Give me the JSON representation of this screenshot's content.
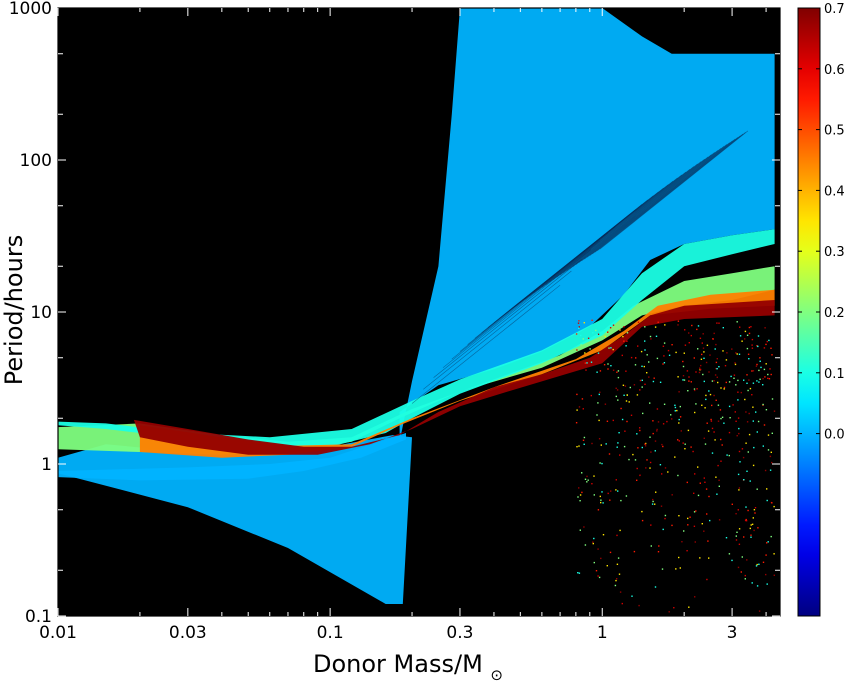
{
  "chart_data": {
    "type": "scatter",
    "title": "",
    "xlabel": "Donor Mass/M",
    "xlabel_symbol": "⊙",
    "ylabel": "Period/hours",
    "xscale": "log",
    "yscale": "log",
    "xlim": [
      0.01,
      4.5
    ],
    "ylim": [
      0.1,
      1000
    ],
    "x_ticks": [
      {
        "value": 0.01,
        "label": "0.01"
      },
      {
        "value": 0.03,
        "label": "0.03"
      },
      {
        "value": 0.1,
        "label": "0.1"
      },
      {
        "value": 0.3,
        "label": "0.3"
      },
      {
        "value": 1,
        "label": "1"
      },
      {
        "value": 3,
        "label": "3"
      }
    ],
    "y_ticks": [
      {
        "value": 0.1,
        "label": "0.1"
      },
      {
        "value": 1,
        "label": "1"
      },
      {
        "value": 10,
        "label": "10"
      },
      {
        "value": 100,
        "label": "100"
      },
      {
        "value": 1000,
        "label": "1000"
      }
    ],
    "background": "#000000",
    "grid": false,
    "colorbar": {
      "min": -0.3,
      "max": 0.7,
      "ticks": [
        {
          "value": 0.7,
          "label": "0.7"
        },
        {
          "value": 0.6,
          "label": "0.6"
        },
        {
          "value": 0.5,
          "label": "0.5"
        },
        {
          "value": 0.4,
          "label": "0.4"
        },
        {
          "value": 0.3,
          "label": "0.3"
        },
        {
          "value": 0.2,
          "label": "0.2"
        },
        {
          "value": 0.1,
          "label": "0.1"
        },
        {
          "value": 0.0,
          "label": "0.0"
        }
      ],
      "colormap": "jet"
    },
    "regions": [
      {
        "name": "blue-fan-upper",
        "color_value": 0.0,
        "polygon": [
          [
            0.18,
            1.4
          ],
          [
            0.2,
            3.5
          ],
          [
            0.25,
            20
          ],
          [
            0.28,
            200
          ],
          [
            0.3,
            1000
          ],
          [
            1.0,
            1000
          ],
          [
            1.4,
            650
          ],
          [
            1.8,
            500
          ],
          [
            4.3,
            500
          ],
          [
            4.3,
            35
          ],
          [
            3.0,
            32
          ],
          [
            2.0,
            28
          ],
          [
            1.5,
            22
          ],
          [
            1.2,
            13
          ],
          [
            0.9,
            8
          ],
          [
            0.6,
            5.5
          ],
          [
            0.4,
            4.2
          ],
          [
            0.25,
            3.3
          ],
          [
            0.18,
            2.2
          ]
        ]
      },
      {
        "name": "blue-lower-wedge",
        "color_value": 0.0,
        "polygon": [
          [
            0.01,
            1.1
          ],
          [
            0.01,
            0.87
          ],
          [
            0.03,
            0.52
          ],
          [
            0.07,
            0.28
          ],
          [
            0.16,
            0.12
          ],
          [
            0.185,
            0.12
          ],
          [
            0.2,
            1.5
          ],
          [
            0.17,
            1.55
          ],
          [
            0.1,
            1.3
          ],
          [
            0.06,
            1.15
          ],
          [
            0.03,
            1.2
          ],
          [
            0.015,
            1.35
          ]
        ]
      },
      {
        "name": "blue-left-track",
        "color_value": 0.0,
        "polygon": [
          [
            0.01,
            0.9
          ],
          [
            0.03,
            0.95
          ],
          [
            0.06,
            1.0
          ],
          [
            0.1,
            1.1
          ],
          [
            0.16,
            1.45
          ],
          [
            0.19,
            1.6
          ],
          [
            0.19,
            1.45
          ],
          [
            0.13,
            1.1
          ],
          [
            0.08,
            0.9
          ],
          [
            0.05,
            0.8
          ],
          [
            0.02,
            0.78
          ],
          [
            0.01,
            0.82
          ]
        ]
      },
      {
        "name": "green-band",
        "color_value": 0.2,
        "polygon": [
          [
            0.01,
            1.75
          ],
          [
            0.02,
            1.85
          ],
          [
            0.04,
            1.55
          ],
          [
            0.07,
            1.4
          ],
          [
            0.12,
            1.5
          ],
          [
            0.2,
            2.3
          ],
          [
            0.4,
            3.6
          ],
          [
            0.7,
            5.2
          ],
          [
            1.0,
            7.5
          ],
          [
            1.3,
            11
          ],
          [
            2.0,
            16
          ],
          [
            3.0,
            18
          ],
          [
            4.3,
            20
          ],
          [
            4.3,
            14
          ],
          [
            3.0,
            12
          ],
          [
            2.0,
            11
          ],
          [
            1.4,
            9.5
          ],
          [
            1.0,
            6.5
          ],
          [
            0.6,
            4.3
          ],
          [
            0.3,
            3.0
          ],
          [
            0.18,
            2.0
          ],
          [
            0.12,
            1.4
          ],
          [
            0.07,
            1.2
          ],
          [
            0.04,
            1.15
          ],
          [
            0.02,
            1.2
          ],
          [
            0.01,
            1.25
          ]
        ]
      },
      {
        "name": "cyan-band",
        "color_value": 0.1,
        "polygon": [
          [
            0.01,
            1.8
          ],
          [
            0.015,
            1.7
          ],
          [
            0.02,
            1.6
          ],
          [
            0.04,
            1.35
          ],
          [
            0.06,
            1.25
          ],
          [
            0.1,
            1.3
          ],
          [
            0.16,
            1.6
          ],
          [
            0.2,
            2.0
          ],
          [
            0.3,
            2.9
          ],
          [
            0.6,
            4.6
          ],
          [
            1.0,
            7.0
          ],
          [
            1.4,
            12
          ],
          [
            2.0,
            20
          ],
          [
            3.0,
            24
          ],
          [
            4.3,
            28
          ],
          [
            4.3,
            35
          ],
          [
            3.0,
            32
          ],
          [
            2.0,
            28
          ],
          [
            1.4,
            18
          ],
          [
            1.0,
            9.0
          ],
          [
            0.6,
            5.6
          ],
          [
            0.3,
            3.6
          ],
          [
            0.2,
            2.6
          ],
          [
            0.12,
            1.7
          ],
          [
            0.06,
            1.5
          ],
          [
            0.03,
            1.6
          ],
          [
            0.015,
            1.85
          ],
          [
            0.01,
            1.9
          ]
        ]
      },
      {
        "name": "yellow-band",
        "color_value": 0.45,
        "polygon": [
          [
            0.02,
            1.8
          ],
          [
            0.04,
            1.5
          ],
          [
            0.07,
            1.32
          ],
          [
            0.12,
            1.35
          ],
          [
            0.2,
            2.0
          ],
          [
            0.4,
            3.2
          ],
          [
            0.8,
            4.9
          ],
          [
            1.2,
            7.5
          ],
          [
            1.6,
            11
          ],
          [
            2.5,
            13
          ],
          [
            4.3,
            14
          ],
          [
            4.3,
            11
          ],
          [
            2.5,
            10.5
          ],
          [
            1.5,
            9.5
          ],
          [
            1.0,
            5.6
          ],
          [
            0.6,
            3.9
          ],
          [
            0.3,
            2.6
          ],
          [
            0.18,
            1.8
          ],
          [
            0.12,
            1.3
          ],
          [
            0.07,
            1.15
          ],
          [
            0.04,
            1.1
          ],
          [
            0.02,
            1.2
          ]
        ]
      },
      {
        "name": "red-ridge",
        "color_value": 0.68,
        "polygon": [
          [
            0.019,
            1.95
          ],
          [
            0.03,
            1.7
          ],
          [
            0.05,
            1.45
          ],
          [
            0.08,
            1.3
          ],
          [
            0.12,
            1.3
          ],
          [
            0.18,
            1.55
          ],
          [
            0.25,
            2.2
          ],
          [
            0.4,
            3.2
          ],
          [
            0.6,
            3.9
          ],
          [
            0.9,
            5.0
          ],
          [
            1.2,
            7.0
          ],
          [
            1.5,
            9.5
          ],
          [
            2.0,
            11
          ],
          [
            4.3,
            12
          ],
          [
            4.3,
            9.5
          ],
          [
            2.0,
            9.0
          ],
          [
            1.4,
            8.0
          ],
          [
            1.0,
            4.6
          ],
          [
            0.7,
            3.8
          ],
          [
            0.45,
            3.0
          ],
          [
            0.3,
            2.4
          ],
          [
            0.2,
            1.7
          ],
          [
            0.14,
            1.35
          ],
          [
            0.09,
            1.15
          ],
          [
            0.05,
            1.15
          ],
          [
            0.03,
            1.3
          ],
          [
            0.02,
            1.5
          ]
        ]
      }
    ],
    "scatter_points": {
      "color_values": [
        0.68,
        0.55,
        0.35,
        0.2,
        0.1,
        0.62
      ],
      "x_range": [
        0.8,
        4.3
      ],
      "y_range": [
        0.1,
        9
      ]
    }
  }
}
